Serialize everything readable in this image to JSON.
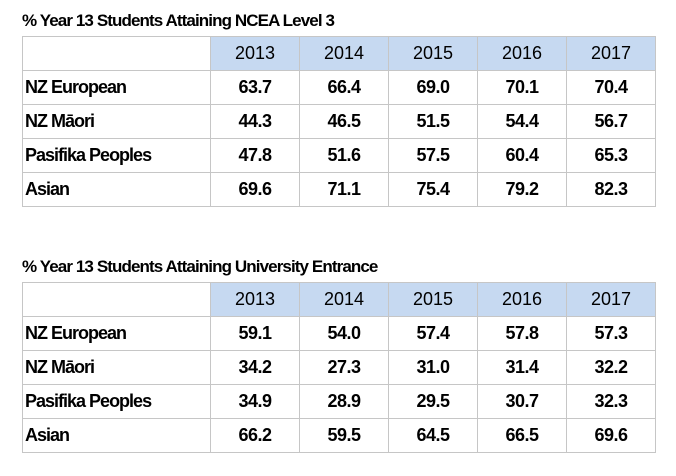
{
  "tables": [
    {
      "title": "% Year 13 Students Attaining NCEA Level 3",
      "years": [
        "2013",
        "2014",
        "2015",
        "2016",
        "2017"
      ],
      "rows": [
        {
          "label": "NZ European",
          "values": [
            "63.7",
            "66.4",
            "69.0",
            "70.1",
            "70.4"
          ]
        },
        {
          "label": "NZ Māori",
          "values": [
            "44.3",
            "46.5",
            "51.5",
            "54.4",
            "56.7"
          ]
        },
        {
          "label": "Pasifika Peoples",
          "values": [
            "47.8",
            "51.6",
            "57.5",
            "60.4",
            "65.3"
          ]
        },
        {
          "label": "Asian",
          "values": [
            "69.6",
            "71.1",
            "75.4",
            "79.2",
            "82.3"
          ]
        }
      ]
    },
    {
      "title": "% Year 13 Students Attaining University Entrance",
      "years": [
        "2013",
        "2014",
        "2015",
        "2016",
        "2017"
      ],
      "rows": [
        {
          "label": "NZ European",
          "values": [
            "59.1",
            "54.0",
            "57.4",
            "57.8",
            "57.3"
          ]
        },
        {
          "label": "NZ Māori",
          "values": [
            "34.2",
            "27.3",
            "31.0",
            "31.4",
            "32.2"
          ]
        },
        {
          "label": "Pasifika Peoples",
          "values": [
            "34.9",
            "28.9",
            "29.5",
            "30.7",
            "32.3"
          ]
        },
        {
          "label": "Asian",
          "values": [
            "66.2",
            "59.5",
            "64.5",
            "66.5",
            "69.6"
          ]
        }
      ]
    }
  ],
  "colors": {
    "header_bg": "#c6d9f1",
    "grid": "#c6c6c6"
  }
}
